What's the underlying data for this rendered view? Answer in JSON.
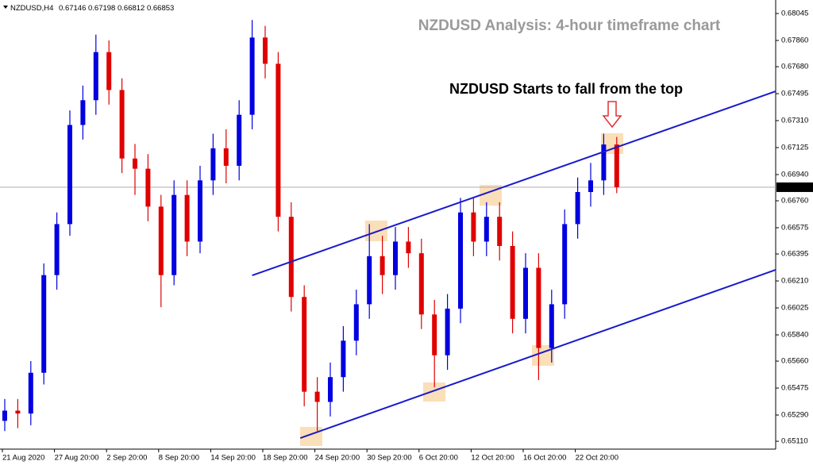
{
  "chart_data": {
    "type": "candlestick",
    "title": "NZDUSD Analysis: 4-hour timeframe chart",
    "annotation": "NZDUSD Starts to fall from the top",
    "symbol": "NZDUSD,H4",
    "x_labels": [
      "21 Aug 2020",
      "27 Aug 20:00",
      "2 Sep 20:00",
      "8 Sep 20:00",
      "14 Sep 20:00",
      "18 Sep 20:00",
      "24 Sep 20:00",
      "30 Sep 20:00",
      "6 Oct 20:00",
      "12 Oct 20:00",
      "16 Oct 20:00",
      "22 Oct 20:00"
    ],
    "open": [
      0.6525,
      0.6532,
      0.653,
      0.6558,
      0.6625,
      0.666,
      0.6728,
      0.6745,
      0.6778,
      0.6752,
      0.6705,
      0.6698,
      0.6672,
      0.6625,
      0.668,
      0.6648,
      0.669,
      0.6712,
      0.67,
      0.6735,
      0.6788,
      0.677,
      0.6665,
      0.661,
      0.6545,
      0.6538,
      0.6555,
      0.658,
      0.6605,
      0.6638,
      0.6625,
      0.6648,
      0.664,
      0.6598,
      0.657,
      0.6602,
      0.6668,
      0.6648,
      0.6665,
      0.6645,
      0.6595,
      0.663,
      0.6575,
      0.6605,
      0.666,
      0.6682,
      0.669,
      0.67146
    ],
    "high": [
      0.654,
      0.654,
      0.6566,
      0.6633,
      0.6668,
      0.6738,
      0.6755,
      0.679,
      0.6786,
      0.676,
      0.6715,
      0.6708,
      0.668,
      0.669,
      0.669,
      0.67,
      0.6722,
      0.6725,
      0.6745,
      0.68,
      0.6796,
      0.6778,
      0.6675,
      0.6618,
      0.6555,
      0.6565,
      0.659,
      0.6615,
      0.666,
      0.6652,
      0.6658,
      0.6658,
      0.665,
      0.6608,
      0.6612,
      0.6678,
      0.6678,
      0.6675,
      0.6675,
      0.6655,
      0.664,
      0.664,
      0.6615,
      0.667,
      0.6692,
      0.6702,
      0.6722,
      0.67198
    ],
    "low": [
      0.6518,
      0.652,
      0.6522,
      0.655,
      0.6615,
      0.6652,
      0.6718,
      0.6735,
      0.6742,
      0.6695,
      0.668,
      0.6662,
      0.6603,
      0.6618,
      0.6638,
      0.664,
      0.668,
      0.6688,
      0.669,
      0.6725,
      0.676,
      0.6655,
      0.66,
      0.6535,
      0.6518,
      0.6528,
      0.6545,
      0.657,
      0.6595,
      0.6612,
      0.6615,
      0.663,
      0.6588,
      0.6548,
      0.656,
      0.6592,
      0.6638,
      0.6638,
      0.6635,
      0.6585,
      0.6585,
      0.6553,
      0.6565,
      0.6595,
      0.665,
      0.6672,
      0.668,
      0.66812
    ],
    "close": [
      0.6532,
      0.653,
      0.6558,
      0.6625,
      0.666,
      0.6728,
      0.6745,
      0.6778,
      0.6752,
      0.6705,
      0.6698,
      0.6672,
      0.6625,
      0.668,
      0.6648,
      0.669,
      0.6712,
      0.67,
      0.6735,
      0.6788,
      0.677,
      0.6665,
      0.661,
      0.6545,
      0.6538,
      0.6555,
      0.658,
      0.6605,
      0.6638,
      0.6625,
      0.6648,
      0.664,
      0.6598,
      0.657,
      0.6602,
      0.6668,
      0.6648,
      0.6665,
      0.6645,
      0.6595,
      0.663,
      0.6575,
      0.6605,
      0.666,
      0.6682,
      0.669,
      0.67146,
      0.66853
    ],
    "up_color": "#0000e0",
    "down_color": "#e00000",
    "ylim": [
      0.65056,
      0.68094
    ],
    "yticks": [
      0.68045,
      {
        "value": 0.6786,
        "label": "0.67860"
      },
      {
        "value": 0.6768,
        "label": "0.67680"
      },
      0.67495,
      {
        "value": 0.6731,
        "label": "0.67310"
      },
      0.67125,
      {
        "value": 0.6694,
        "label": "0.66940"
      },
      {
        "value": 0.6676,
        "label": "0.66760"
      },
      0.66575,
      0.66395,
      {
        "value": 0.6621,
        "label": "0.66210"
      },
      0.66025,
      {
        "value": 0.6584,
        "label": "0.65840"
      },
      {
        "value": 0.6566,
        "label": "0.65660"
      },
      0.65475,
      {
        "value": 0.6529,
        "label": "0.65290"
      },
      {
        "value": 0.6511,
        "label": "0.65110"
      }
    ],
    "trendlines": [
      {
        "x": [
          19,
          59.2
        ],
        "y": [
          0.66248,
          0.67511
        ]
      },
      {
        "x": [
          22.7,
          59.2
        ],
        "y": [
          0.65132,
          0.66286
        ]
      }
    ],
    "trendline_color": "#1a1acc"
  }
}
